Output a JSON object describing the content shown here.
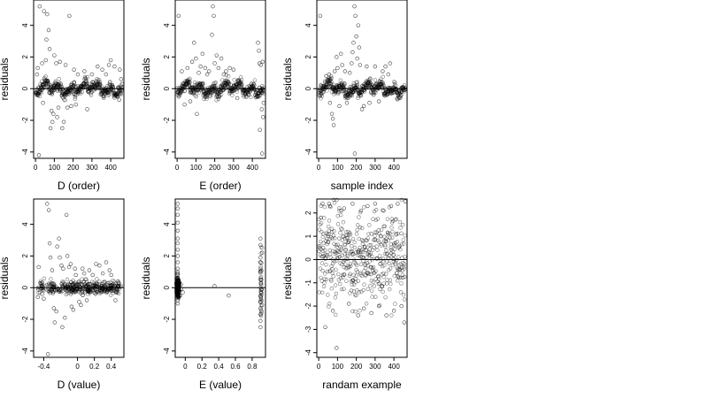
{
  "chart_data": [
    {
      "type": "scatter",
      "xlabel": "D (order)",
      "ylabel": "residuals",
      "xlim": [
        -10,
        470
      ],
      "ylim": [
        -4.4,
        5.6
      ],
      "xticks": [
        0,
        100,
        200,
        300,
        400
      ],
      "yticks": [
        -4,
        -2,
        0,
        2,
        4
      ],
      "hline": 0,
      "grid": false,
      "shape": "order-clustered",
      "points": [
        [
          8,
          0.9
        ],
        [
          12,
          1.3
        ],
        [
          18,
          -4.2
        ],
        [
          22,
          5.2
        ],
        [
          35,
          1.6
        ],
        [
          40,
          -0.9
        ],
        [
          45,
          4.9
        ],
        [
          55,
          1.8
        ],
        [
          58,
          3.1
        ],
        [
          62,
          4.7
        ],
        [
          70,
          3.7
        ],
        [
          75,
          2.5
        ],
        [
          80,
          -2.5
        ],
        [
          85,
          -1.4
        ],
        [
          90,
          -2.1
        ],
        [
          95,
          -1.6
        ],
        [
          100,
          2.1
        ],
        [
          110,
          1.6
        ],
        [
          115,
          -1.8
        ],
        [
          122,
          -1.2
        ],
        [
          130,
          1.7
        ],
        [
          142,
          -2.5
        ],
        [
          150,
          -2.1
        ],
        [
          160,
          1.5
        ],
        [
          170,
          -1.2
        ],
        [
          180,
          4.6
        ],
        [
          190,
          -1.1
        ],
        [
          205,
          1.2
        ],
        [
          215,
          -1.0
        ],
        [
          225,
          0.9
        ],
        [
          260,
          1.1
        ],
        [
          275,
          -1.3
        ],
        [
          300,
          0.9
        ],
        [
          330,
          1.4
        ],
        [
          355,
          1.2
        ],
        [
          375,
          0.9
        ],
        [
          390,
          1.5
        ],
        [
          400,
          1.8
        ],
        [
          420,
          1.4
        ],
        [
          445,
          -0.7
        ],
        [
          448,
          1.2
        ],
        [
          455,
          0.6
        ],
        [
          460,
          0.3
        ]
      ]
    },
    {
      "type": "scatter",
      "xlabel": "E (order)",
      "ylabel": "residuals",
      "xlim": [
        -10,
        470
      ],
      "ylim": [
        -4.4,
        5.6
      ],
      "xticks": [
        0,
        100,
        200,
        300,
        400
      ],
      "yticks": [
        -4,
        -2,
        0,
        2,
        4
      ],
      "hline": 0,
      "grid": false,
      "shape": "order-clustered",
      "points": [
        [
          8,
          4.6
        ],
        [
          25,
          1.1
        ],
        [
          40,
          -1.0
        ],
        [
          55,
          1.3
        ],
        [
          70,
          -0.8
        ],
        [
          80,
          1.7
        ],
        [
          90,
          2.9
        ],
        [
          100,
          1.9
        ],
        [
          105,
          -1.6
        ],
        [
          115,
          1.0
        ],
        [
          125,
          1.4
        ],
        [
          135,
          2.2
        ],
        [
          150,
          1.3
        ],
        [
          160,
          0.9
        ],
        [
          170,
          1.1
        ],
        [
          185,
          3.4
        ],
        [
          190,
          5.2
        ],
        [
          195,
          4.6
        ],
        [
          200,
          1.6
        ],
        [
          210,
          2.1
        ],
        [
          220,
          1.3
        ],
        [
          235,
          1.9
        ],
        [
          248,
          0.9
        ],
        [
          260,
          1.1
        ],
        [
          280,
          1.3
        ],
        [
          300,
          1.2
        ],
        [
          320,
          -0.6
        ],
        [
          430,
          2.9
        ],
        [
          435,
          2.4
        ],
        [
          438,
          1.6
        ],
        [
          440,
          -2.6
        ],
        [
          445,
          1.5
        ],
        [
          450,
          -1.3
        ],
        [
          452,
          -4.1
        ],
        [
          455,
          1.7
        ],
        [
          458,
          -1.8
        ],
        [
          460,
          -0.9
        ]
      ]
    },
    {
      "type": "scatter",
      "xlabel": "sample index",
      "ylabel": "residuals",
      "xlim": [
        -10,
        470
      ],
      "ylim": [
        -4.4,
        5.6
      ],
      "xticks": [
        0,
        100,
        200,
        300,
        400
      ],
      "yticks": [
        -4,
        -2,
        0,
        2,
        4
      ],
      "hline": 0,
      "grid": false,
      "shape": "order-clustered",
      "points": [
        [
          8,
          4.6
        ],
        [
          40,
          0.8
        ],
        [
          55,
          0.9
        ],
        [
          60,
          -0.9
        ],
        [
          70,
          -1.6
        ],
        [
          75,
          -1.9
        ],
        [
          80,
          -2.3
        ],
        [
          85,
          1.1
        ],
        [
          95,
          2.0
        ],
        [
          100,
          1.3
        ],
        [
          110,
          -1.1
        ],
        [
          118,
          2.2
        ],
        [
          125,
          1.5
        ],
        [
          140,
          1.1
        ],
        [
          150,
          -0.9
        ],
        [
          165,
          1.0
        ],
        [
          175,
          1.6
        ],
        [
          180,
          2.3
        ],
        [
          185,
          2.9
        ],
        [
          190,
          5.2
        ],
        [
          192,
          -4.1
        ],
        [
          195,
          4.6
        ],
        [
          200,
          3.3
        ],
        [
          205,
          1.9
        ],
        [
          210,
          4.0
        ],
        [
          215,
          2.6
        ],
        [
          220,
          1.5
        ],
        [
          230,
          -1.3
        ],
        [
          240,
          -1.1
        ],
        [
          255,
          1.4
        ],
        [
          270,
          -0.9
        ],
        [
          300,
          1.4
        ],
        [
          320,
          -0.8
        ],
        [
          340,
          1.1
        ],
        [
          355,
          1.4
        ],
        [
          370,
          0.9
        ],
        [
          380,
          1.6
        ]
      ]
    },
    {
      "type": "scatter",
      "xlabel": "D (value)",
      "ylabel": "residuals",
      "xlim": [
        -0.52,
        0.55
      ],
      "ylim": [
        -4.4,
        5.6
      ],
      "xticks": [
        -0.4,
        0.0,
        0.2,
        0.4
      ],
      "yticks": [
        -4,
        -2,
        0,
        2,
        4
      ],
      "hline": 0,
      "grid": false,
      "shape": "value-clustered",
      "points": [
        [
          -0.47,
          -0.6
        ],
        [
          -0.46,
          1.3
        ],
        [
          -0.44,
          0.3
        ],
        [
          -0.42,
          -0.4
        ],
        [
          -0.4,
          -0.7
        ],
        [
          -0.36,
          5.3
        ],
        [
          -0.35,
          -4.2
        ],
        [
          -0.34,
          4.9
        ],
        [
          -0.33,
          2.8
        ],
        [
          -0.32,
          1.9
        ],
        [
          -0.3,
          1.1
        ],
        [
          -0.28,
          -1.3
        ],
        [
          -0.27,
          -2.2
        ],
        [
          -0.25,
          -1.5
        ],
        [
          -0.24,
          2.6
        ],
        [
          -0.22,
          3.1
        ],
        [
          -0.21,
          1.9
        ],
        [
          -0.19,
          1.4
        ],
        [
          -0.18,
          -2.5
        ],
        [
          -0.17,
          1.2
        ],
        [
          -0.15,
          -1.9
        ],
        [
          -0.13,
          4.6
        ],
        [
          -0.12,
          2.0
        ],
        [
          -0.1,
          1.3
        ],
        [
          -0.08,
          1.5
        ],
        [
          -0.07,
          -1.2
        ],
        [
          -0.05,
          -1.4
        ],
        [
          -0.03,
          1.2
        ],
        [
          -0.02,
          0.8
        ],
        [
          0.02,
          -0.9
        ],
        [
          0.04,
          -1.1
        ],
        [
          0.06,
          1.2
        ],
        [
          0.08,
          0.9
        ],
        [
          0.11,
          -0.8
        ],
        [
          0.14,
          1.1
        ],
        [
          0.18,
          0.8
        ],
        [
          0.22,
          1.5
        ],
        [
          0.26,
          1.4
        ],
        [
          0.3,
          0.9
        ],
        [
          0.34,
          1.6
        ],
        [
          0.38,
          1.1
        ],
        [
          0.4,
          0.8
        ],
        [
          0.45,
          -0.8
        ],
        [
          0.48,
          0.4
        ]
      ]
    },
    {
      "type": "scatter",
      "xlabel": "E (value)",
      "ylabel": "residuals",
      "xlim": [
        -0.12,
        0.96
      ],
      "ylim": [
        -4.4,
        5.6
      ],
      "xticks": [
        0.0,
        0.2,
        0.4,
        0.6,
        0.8
      ],
      "yticks": [
        -4,
        -2,
        0,
        2,
        4
      ],
      "hline": 0,
      "grid": false,
      "shape": "two-groups",
      "points": [
        [
          -0.09,
          5.3
        ],
        [
          -0.09,
          5.0
        ],
        [
          -0.09,
          4.6
        ],
        [
          -0.09,
          4.1
        ],
        [
          -0.09,
          3.6
        ],
        [
          -0.09,
          3.1
        ],
        [
          -0.09,
          2.8
        ],
        [
          -0.09,
          2.4
        ],
        [
          -0.09,
          2.0
        ],
        [
          -0.09,
          1.6
        ],
        [
          -0.09,
          1.2
        ],
        [
          -0.09,
          0.9
        ],
        [
          -0.09,
          0.6
        ],
        [
          -0.09,
          0.4
        ],
        [
          -0.09,
          -0.4
        ],
        [
          -0.09,
          -0.6
        ],
        [
          -0.09,
          -0.8
        ],
        [
          -0.09,
          -1.0
        ],
        [
          -0.08,
          -0.6
        ],
        [
          -0.08,
          0.5
        ],
        [
          -0.07,
          -0.2
        ],
        [
          -0.07,
          0.3
        ],
        [
          -0.06,
          -0.5
        ],
        [
          -0.05,
          -0.1
        ],
        [
          -0.05,
          0.2
        ],
        [
          -0.03,
          -0.3
        ],
        [
          0.35,
          0.1
        ],
        [
          0.52,
          -0.5
        ],
        [
          0.9,
          3.1
        ],
        [
          0.9,
          2.7
        ],
        [
          0.9,
          1.9
        ],
        [
          0.9,
          1.6
        ],
        [
          0.9,
          1.2
        ],
        [
          0.9,
          -0.5
        ],
        [
          0.9,
          -0.9
        ],
        [
          0.9,
          -1.3
        ],
        [
          0.9,
          -1.7
        ],
        [
          0.9,
          -2.1
        ],
        [
          0.9,
          -2.5
        ],
        [
          0.91,
          -0.3
        ],
        [
          0.91,
          0.5
        ],
        [
          0.92,
          2.2
        ],
        [
          0.92,
          -1.1
        ]
      ]
    },
    {
      "type": "scatter",
      "xlabel": "randam example",
      "ylabel": "residuals",
      "xlim": [
        -10,
        470
      ],
      "ylim": [
        -4.2,
        2.6
      ],
      "xticks": [
        0,
        100,
        200,
        300,
        400
      ],
      "yticks": [
        -4,
        -3,
        -2,
        -1,
        0,
        1,
        2
      ],
      "hline": 0,
      "grid": false,
      "shape": "random",
      "points": [
        [
          12,
          1.8
        ],
        [
          20,
          2.4
        ],
        [
          35,
          -2.9
        ],
        [
          55,
          2.4
        ],
        [
          60,
          2.3
        ],
        [
          75,
          -2.2
        ],
        [
          95,
          -3.8
        ],
        [
          120,
          2.1
        ],
        [
          135,
          2.2
        ],
        [
          160,
          -1.9
        ],
        [
          180,
          2.4
        ],
        [
          210,
          -2.4
        ],
        [
          225,
          2.1
        ],
        [
          240,
          -2.1
        ],
        [
          260,
          2.3
        ],
        [
          280,
          -2.3
        ],
        [
          300,
          2.4
        ],
        [
          320,
          -2.0
        ],
        [
          345,
          2.1
        ],
        [
          360,
          -2.4
        ],
        [
          385,
          2.3
        ],
        [
          400,
          -2.2
        ],
        [
          420,
          2.4
        ],
        [
          440,
          -2.0
        ],
        [
          455,
          -2.7
        ],
        [
          460,
          2.5
        ]
      ]
    }
  ]
}
